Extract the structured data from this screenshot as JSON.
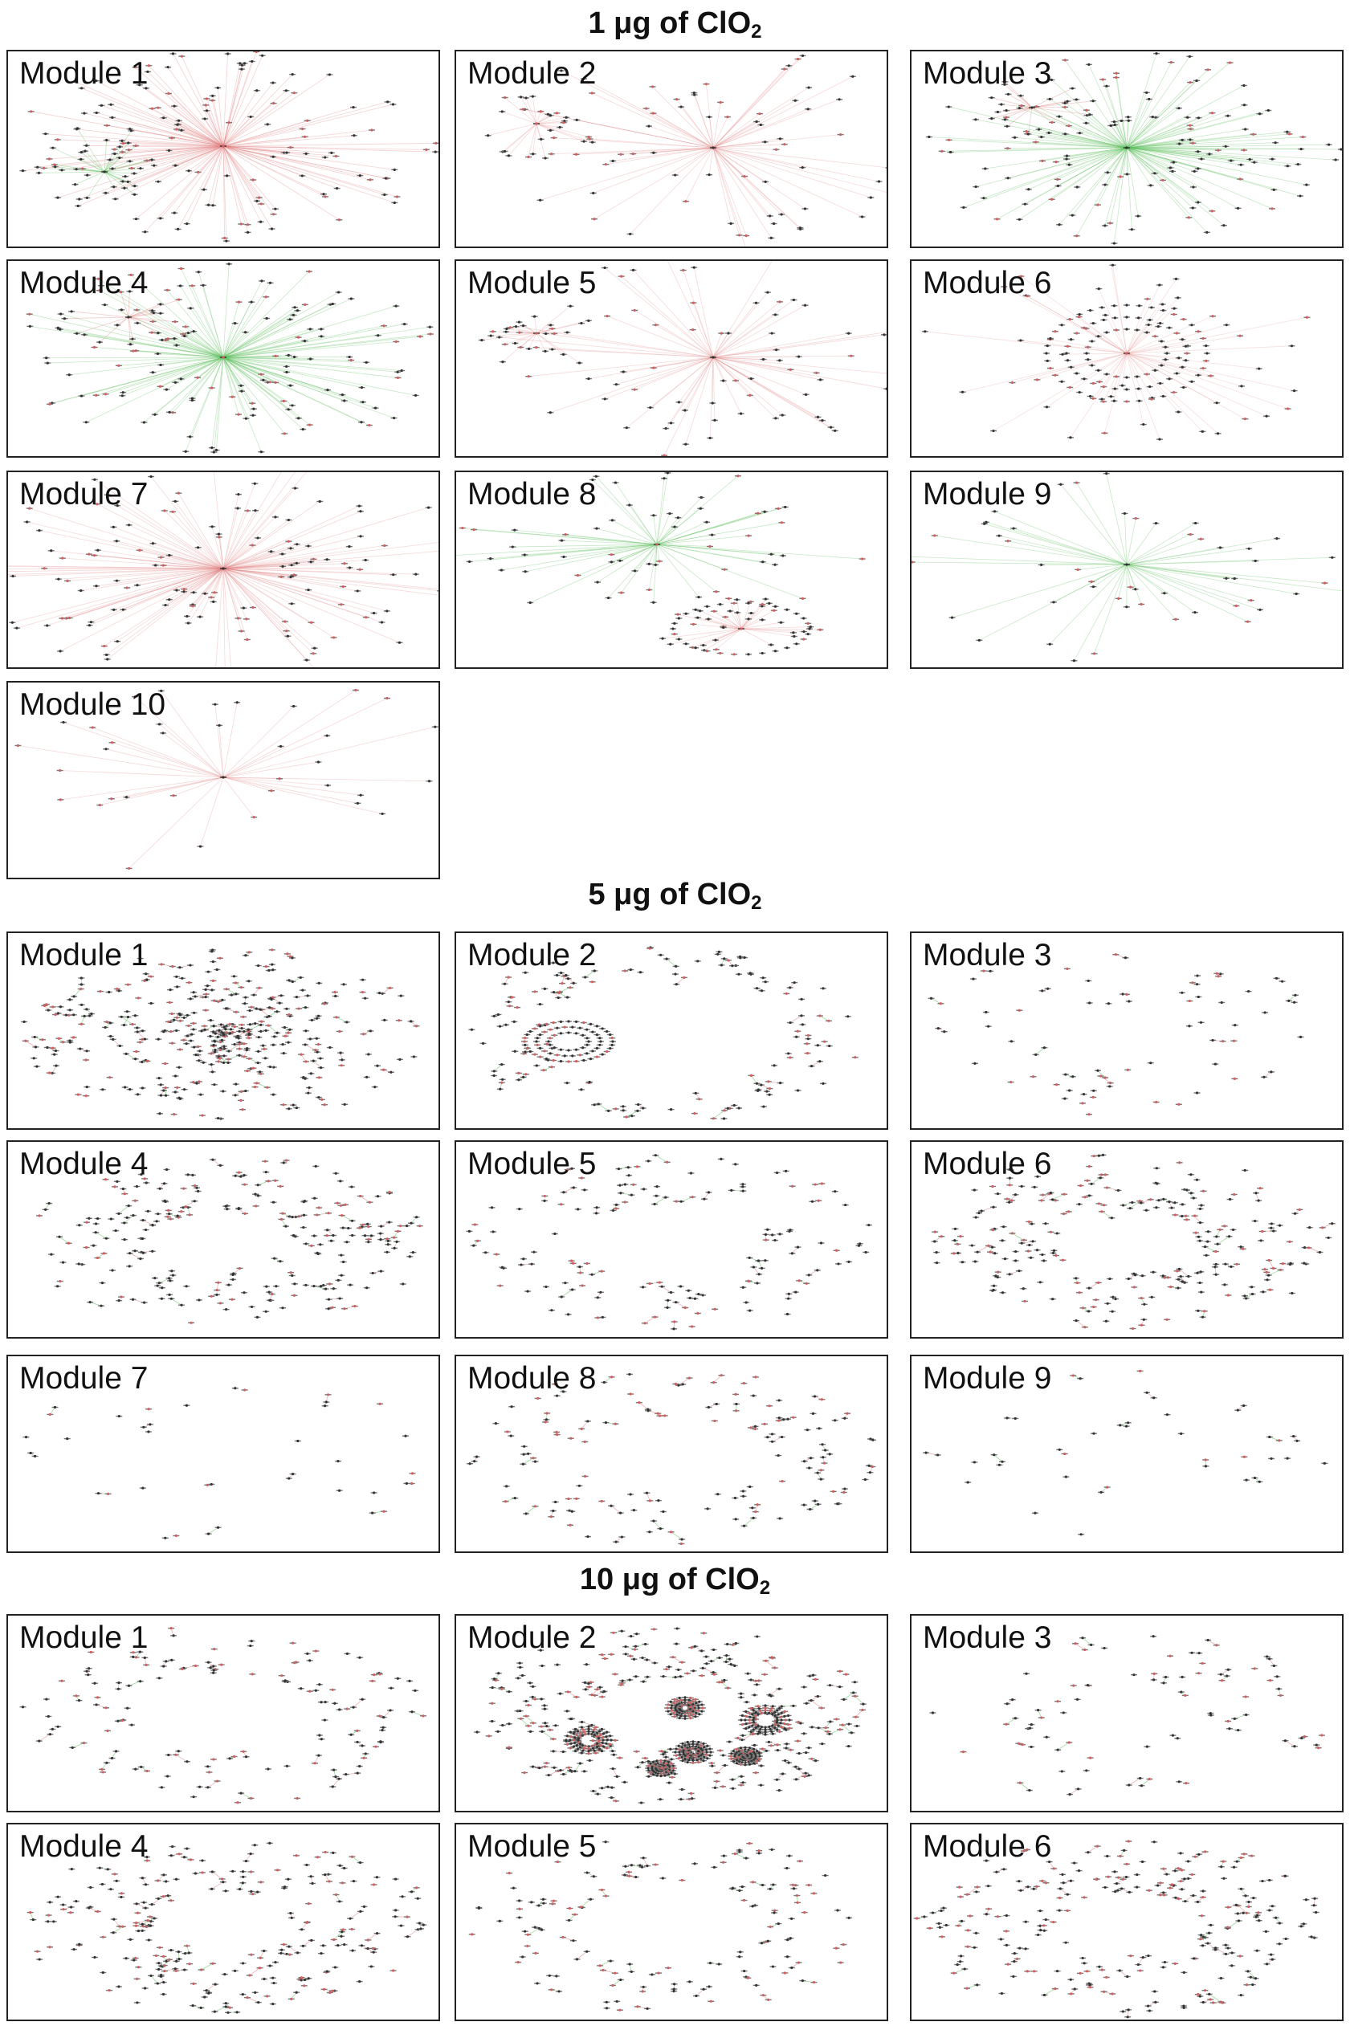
{
  "sections": [
    {
      "title_main": "1 μg of  ClO",
      "title_sub": "2",
      "modules": [
        "Module 1",
        "Module 2",
        "Module 3",
        "Module 4",
        "Module 5",
        "Module 6",
        "Module 7",
        "Module 8",
        "Module 9",
        "Module 10"
      ]
    },
    {
      "title_main": "5 μg of ClO",
      "title_sub": "2",
      "modules": [
        "Module 1",
        "Module 2",
        "Module 3",
        "Module 4",
        "Module 5",
        "Module 6",
        "Module 7",
        "Module 8",
        "Module 9"
      ]
    },
    {
      "title_main": "10 μg of ClO",
      "title_sub": "2",
      "modules": [
        "Module 1",
        "Module 2",
        "Module 3",
        "Module 4",
        "Module 5",
        "Module 6"
      ]
    }
  ],
  "colors": {
    "edge_red": "#e08080",
    "edge_green": "#5fbf5f",
    "node_dark": "#333333",
    "node_pink": "#d06060",
    "border": "#222222"
  }
}
